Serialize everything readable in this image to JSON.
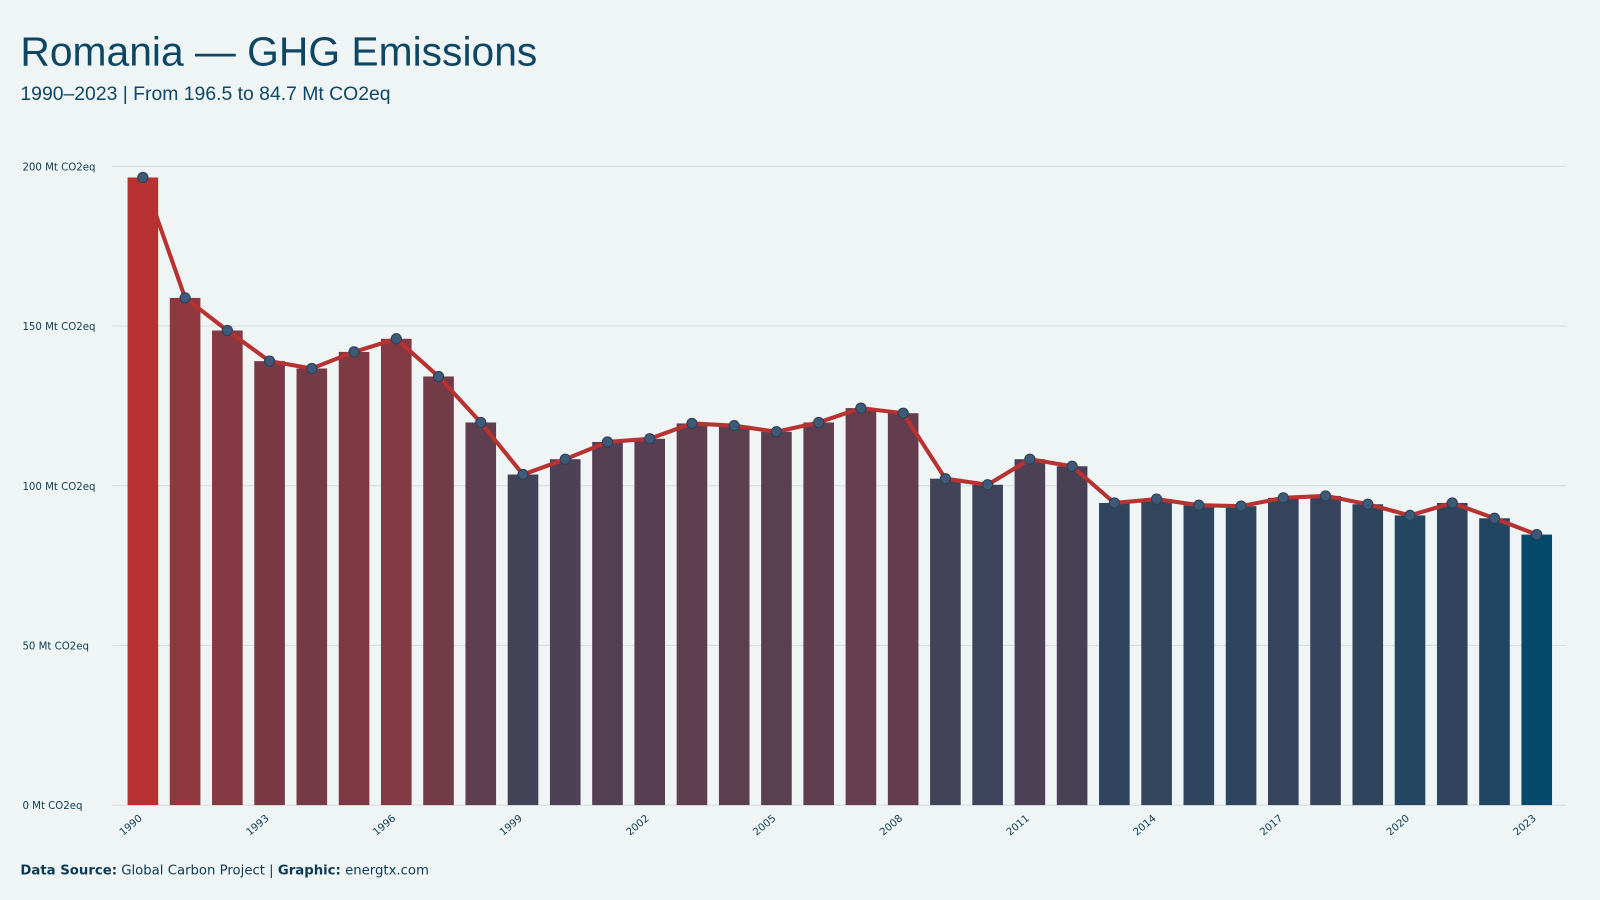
{
  "chart_data": {
    "type": "bar",
    "title": "Romania — GHG Emissions",
    "subtitle": "1990–2023 | From 196.5  to 84.7 Mt CO2eq",
    "x": [
      1990,
      1991,
      1992,
      1993,
      1994,
      1995,
      1996,
      1997,
      1998,
      1999,
      2000,
      2001,
      2002,
      2003,
      2004,
      2005,
      2006,
      2007,
      2008,
      2009,
      2010,
      2011,
      2012,
      2013,
      2014,
      2015,
      2016,
      2017,
      2018,
      2019,
      2020,
      2021,
      2022,
      2023
    ],
    "values": [
      196.5,
      158.8,
      148.6,
      139,
      136.7,
      141.9,
      146,
      134.2,
      119.8,
      103.5,
      108.3,
      113.7,
      114.7,
      119.5,
      118.8,
      116.9,
      119.8,
      124.3,
      122.7,
      102.2,
      100.3,
      108.3,
      106.1,
      94.6,
      95.8,
      93.9,
      93.6,
      96.2,
      96.8,
      94.2,
      90.7,
      94.6,
      89.8,
      84.7
    ],
    "color_low": "#064a6b",
    "color_high": "#b83232",
    "line_color": "#b83232",
    "point_color": "#3d5a78",
    "xlim": [
      1989.3,
      2023.7
    ],
    "xticks": [
      1990,
      1993,
      1996,
      1999,
      2002,
      2005,
      2008,
      2011,
      2014,
      2017,
      2020,
      2023
    ],
    "ylim": [
      0,
      200
    ],
    "yticks": [
      {
        "value": 0,
        "label": "0 Mt CO2eq"
      },
      {
        "value": 50,
        "label": "50 Mt CO2eq"
      },
      {
        "value": 100,
        "label": "100 Mt CO2eq"
      },
      {
        "value": 150,
        "label": "150 Mt CO2eq"
      },
      {
        "value": 200,
        "label": "200 Mt CO2eq"
      }
    ],
    "grid": true,
    "source_label": "Data Source:",
    "source": "Global Carbon Project |",
    "graphic_label": "Graphic:",
    "graphic": "energtx.com"
  }
}
